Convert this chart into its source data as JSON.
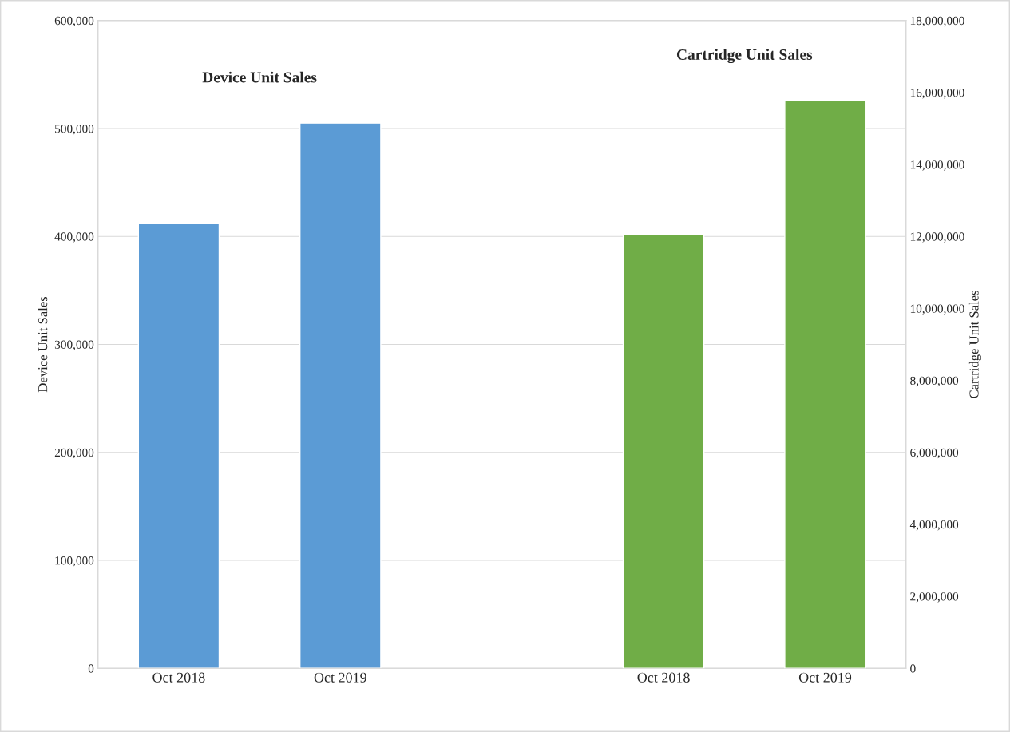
{
  "chart_data": {
    "type": "bar",
    "categories": [
      "Oct 2018",
      "Oct 2019",
      null,
      "Oct 2018",
      "Oct 2019"
    ],
    "series": [
      {
        "name": "Device Unit Sales",
        "color": "#5b9bd5",
        "values": [
          412000,
          505000,
          null,
          null,
          null
        ],
        "axis": "y"
      },
      {
        "name": "Cartridge Unit Sales",
        "color": "#70ad47",
        "values": [
          null,
          null,
          null,
          12050000,
          15780000
        ],
        "axis": "y2"
      }
    ],
    "ylabel": "Device Unit Sales",
    "y2label": "Cartridge Unit Sales",
    "ylim": [
      0,
      600000
    ],
    "yticks": [
      0,
      {
        "value": 100000,
        "label": "100,000"
      },
      {
        "value": 200000,
        "label": "200,000"
      },
      {
        "value": 300000,
        "label": "300,000"
      },
      {
        "value": 400000,
        "label": "400,000"
      },
      {
        "value": 500000,
        "label": "500,000"
      },
      {
        "value": 600000,
        "label": "600,000"
      }
    ],
    "y2lim": [
      0,
      18000000
    ],
    "y2ticks": [
      0,
      {
        "value": 2000000,
        "label": "2,000,000"
      },
      {
        "value": 4000000,
        "label": "4,000,000"
      },
      {
        "value": 6000000,
        "label": "6,000,000"
      },
      {
        "value": 8000000,
        "label": "8,000,000"
      },
      {
        "value": 10000000,
        "label": "10,000,000"
      },
      {
        "value": 12000000,
        "label": "12,000,000"
      },
      {
        "value": 14000000,
        "label": "14,000,000"
      },
      {
        "value": 16000000,
        "label": "16,000,000"
      },
      {
        "value": 18000000,
        "label": "18,000,000"
      }
    ],
    "grid": "y",
    "legend": false
  }
}
